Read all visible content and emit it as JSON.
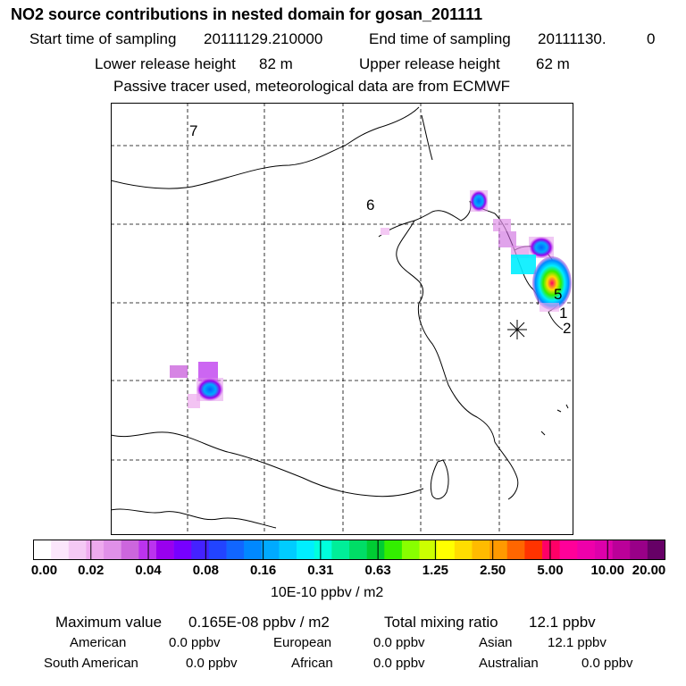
{
  "header": {
    "title": "NO2 source contributions in nested domain for gosan_201111",
    "start_label": "Start time of sampling",
    "start_value": "20111129.210000",
    "end_label": "End time of sampling",
    "end_value": "20111130.",
    "end_suffix": "0",
    "lower_label": "Lower release height",
    "lower_value": "82 m",
    "upper_label": "Upper release height",
    "upper_value": "62 m",
    "note": "Passive tracer used, meteorological data are from ECMWF"
  },
  "map": {
    "region_labels": [
      "7",
      "6",
      "5",
      "1",
      "2"
    ],
    "marker": "receptor-asterisk"
  },
  "legend": {
    "unit": "10E-10 ppbv / m2",
    "ticks": [
      "0.00",
      "0.02",
      "0.04",
      "0.08",
      "0.16",
      "0.31",
      "0.63",
      "1.25",
      "2.50",
      "5.00",
      "10.00",
      "20.00"
    ],
    "colors": [
      "#ffffff",
      "#fbe6fb",
      "#f4c9f4",
      "#eeaaee",
      "#e090e8",
      "#cc66dd",
      "#bb33ee",
      "#9900ee",
      "#7700ff",
      "#4422ff",
      "#2244ff",
      "#1166ff",
      "#0088ff",
      "#00aaff",
      "#00ccff",
      "#00eeff",
      "#00ffdd",
      "#00ee99",
      "#00dd66",
      "#00cc33",
      "#33ee00",
      "#88ff00",
      "#ccff00",
      "#ffff00",
      "#ffdd00",
      "#ffbb00",
      "#ff9900",
      "#ff6600",
      "#ff3300",
      "#ff0066",
      "#ff0099",
      "#ee00aa",
      "#dd00aa",
      "#bb0099",
      "#990088",
      "#660066"
    ]
  },
  "footer": {
    "max_label": "Maximum value",
    "max_value": "0.165E-08 ppbv / m2",
    "total_label": "Total mixing ratio",
    "total_value": "12.1 ppbv",
    "regions": [
      {
        "name": "American",
        "value": "0.0 ppbv"
      },
      {
        "name": "European",
        "value": "0.0 ppbv"
      },
      {
        "name": "Asian",
        "value": "12.1 ppbv"
      },
      {
        "name": "South American",
        "value": "0.0 ppbv"
      },
      {
        "name": "African",
        "value": "0.0 ppbv"
      },
      {
        "name": "Australian",
        "value": "0.0 ppbv"
      }
    ]
  }
}
